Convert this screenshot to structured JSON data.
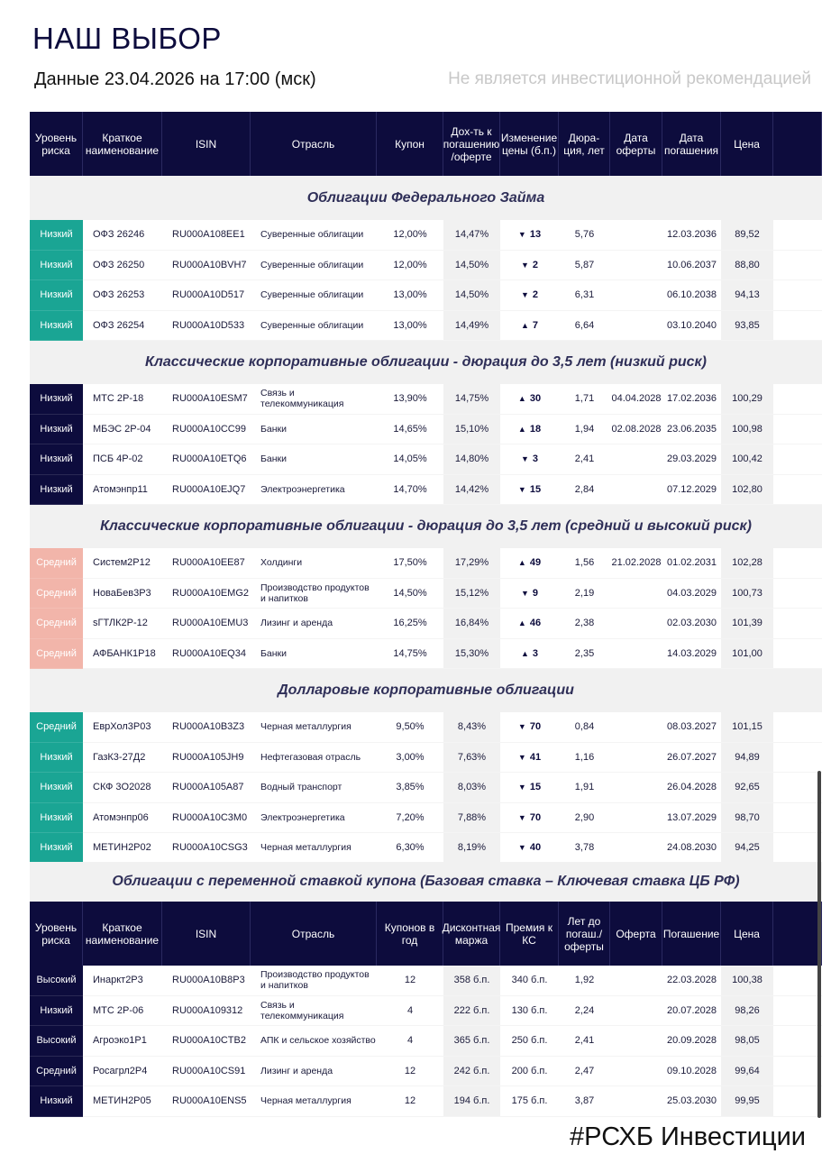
{
  "header": {
    "title": "НАШ ВЫБОР",
    "date": "Данные 23.04.2026 на 17:00 (мск)",
    "disclaimer": "Не является инвестиционной рекомендацией"
  },
  "colors": {
    "navy": "#0d0c3d",
    "teal": "#1aa594",
    "salmon": "#f2b5aa"
  },
  "table1": {
    "columns": [
      "Уровень риска",
      "Краткое наименование",
      "ISIN",
      "Отрасль",
      "Купон",
      "Дох-ть к погашению /оферте",
      "Изменение цены (б.п.)",
      "Дюра-ция, лет",
      "Дата оферты",
      "Дата погашения",
      "Цена"
    ],
    "sections": [
      {
        "title": "Облигации Федерального Займа",
        "risk_color": "teal",
        "rows": [
          {
            "risk": "Низкий",
            "name": "ОФЗ 26246",
            "isin": "RU000A108EE1",
            "sector": "Суверенные облигации",
            "coupon": "12,00%",
            "ytm": "14,47%",
            "chg_dir": "down",
            "chg": "13",
            "dur": "5,76",
            "offer": "",
            "maturity": "12.03.2036",
            "price": "89,52"
          },
          {
            "risk": "Низкий",
            "name": "ОФЗ 26250",
            "isin": "RU000A10BVH7",
            "sector": "Суверенные облигации",
            "coupon": "12,00%",
            "ytm": "14,50%",
            "chg_dir": "down",
            "chg": "2",
            "dur": "5,87",
            "offer": "",
            "maturity": "10.06.2037",
            "price": "88,80"
          },
          {
            "risk": "Низкий",
            "name": "ОФЗ 26253",
            "isin": "RU000A10D517",
            "sector": "Суверенные облигации",
            "coupon": "13,00%",
            "ytm": "14,50%",
            "chg_dir": "down",
            "chg": "2",
            "dur": "6,31",
            "offer": "",
            "maturity": "06.10.2038",
            "price": "94,13"
          },
          {
            "risk": "Низкий",
            "name": "ОФЗ 26254",
            "isin": "RU000A10D533",
            "sector": "Суверенные облигации",
            "coupon": "13,00%",
            "ytm": "14,49%",
            "chg_dir": "up",
            "chg": "7",
            "dur": "6,64",
            "offer": "",
            "maturity": "03.10.2040",
            "price": "93,85"
          }
        ]
      },
      {
        "title": "Классические корпоративные облигации - дюрация до 3,5 лет (низкий риск)",
        "risk_color": "navy",
        "rows": [
          {
            "risk": "Низкий",
            "name": "МТС 2Р-18",
            "isin": "RU000A10ESM7",
            "sector": "Связь и телекоммуникация",
            "coupon": "13,90%",
            "ytm": "14,75%",
            "chg_dir": "up",
            "chg": "30",
            "dur": "1,71",
            "offer": "04.04.2028",
            "maturity": "17.02.2036",
            "price": "100,29"
          },
          {
            "risk": "Низкий",
            "name": "МБЭС 2Р-04",
            "isin": "RU000A10CC99",
            "sector": "Банки",
            "coupon": "14,65%",
            "ytm": "15,10%",
            "chg_dir": "up",
            "chg": "18",
            "dur": "1,94",
            "offer": "02.08.2028",
            "maturity": "23.06.2035",
            "price": "100,98"
          },
          {
            "risk": "Низкий",
            "name": "ПСБ 4Р-02",
            "isin": "RU000A10ETQ6",
            "sector": "Банки",
            "coupon": "14,05%",
            "ytm": "14,80%",
            "chg_dir": "down",
            "chg": "3",
            "dur": "2,41",
            "offer": "",
            "maturity": "29.03.2029",
            "price": "100,42"
          },
          {
            "risk": "Низкий",
            "name": "Атомэнпр11",
            "isin": "RU000A10EJQ7",
            "sector": "Электроэнергетика",
            "coupon": "14,70%",
            "ytm": "14,42%",
            "chg_dir": "down",
            "chg": "15",
            "dur": "2,84",
            "offer": "",
            "maturity": "07.12.2029",
            "price": "102,80"
          }
        ]
      },
      {
        "title": "Классические корпоративные облигации - дюрация до 3,5 лет (средний и высокий риск)",
        "risk_color": "salmon",
        "rows": [
          {
            "risk": "Средний",
            "name": "Систем2Р12",
            "isin": "RU000A10EE87",
            "sector": "Холдинги",
            "coupon": "17,50%",
            "ytm": "17,29%",
            "chg_dir": "up",
            "chg": "49",
            "dur": "1,56",
            "offer": "21.02.2028",
            "maturity": "01.02.2031",
            "price": "102,28"
          },
          {
            "risk": "Средний",
            "name": "НоваБев3Р3",
            "isin": "RU000A10EMG2",
            "sector": "Производство продуктов и напитков",
            "coupon": "14,50%",
            "ytm": "15,12%",
            "chg_dir": "down",
            "chg": "9",
            "dur": "2,19",
            "offer": "",
            "maturity": "04.03.2029",
            "price": "100,73"
          },
          {
            "risk": "Средний",
            "name": "sГТЛК2Р-12",
            "isin": "RU000A10EMU3",
            "sector": "Лизинг и аренда",
            "coupon": "16,25%",
            "ytm": "16,84%",
            "chg_dir": "up",
            "chg": "46",
            "dur": "2,38",
            "offer": "",
            "maturity": "02.03.2030",
            "price": "101,39"
          },
          {
            "risk": "Средний",
            "name": "АФБАНК1Р18",
            "isin": "RU000A10EQ34",
            "sector": "Банки",
            "coupon": "14,75%",
            "ytm": "15,30%",
            "chg_dir": "up",
            "chg": "3",
            "dur": "2,35",
            "offer": "",
            "maturity": "14.03.2029",
            "price": "101,00"
          }
        ]
      },
      {
        "title": "Долларовые корпоративные облигации",
        "risk_color": "teal",
        "rows": [
          {
            "risk": "Средний",
            "name": "ЕврХол3Р03",
            "isin": "RU000A10B3Z3",
            "sector": "Черная металлургия",
            "coupon": "9,50%",
            "ytm": "8,43%",
            "chg_dir": "down",
            "chg": "70",
            "dur": "0,84",
            "offer": "",
            "maturity": "08.03.2027",
            "price": "101,15"
          },
          {
            "risk": "Низкий",
            "name": "ГазК3-27Д2",
            "isin": "RU000A105JH9",
            "sector": "Нефтегазовая отрасль",
            "coupon": "3,00%",
            "ytm": "7,63%",
            "chg_dir": "down",
            "chg": "41",
            "dur": "1,16",
            "offer": "",
            "maturity": "26.07.2027",
            "price": "94,89"
          },
          {
            "risk": "Низкий",
            "name": "СКФ 3О2028",
            "isin": "RU000A105A87",
            "sector": "Водный транспорт",
            "coupon": "3,85%",
            "ytm": "8,03%",
            "chg_dir": "down",
            "chg": "15",
            "dur": "1,91",
            "offer": "",
            "maturity": "26.04.2028",
            "price": "92,65"
          },
          {
            "risk": "Низкий",
            "name": "Атомэнпр06",
            "isin": "RU000A10C3M0",
            "sector": "Электроэнергетика",
            "coupon": "7,20%",
            "ytm": "7,88%",
            "chg_dir": "down",
            "chg": "70",
            "dur": "2,90",
            "offer": "",
            "maturity": "13.07.2029",
            "price": "98,70"
          },
          {
            "risk": "Низкий",
            "name": "МЕТИН2Р02",
            "isin": "RU000A10CSG3",
            "sector": "Черная металлургия",
            "coupon": "6,30%",
            "ytm": "8,19%",
            "chg_dir": "down",
            "chg": "40",
            "dur": "3,78",
            "offer": "",
            "maturity": "24.08.2030",
            "price": "94,25"
          }
        ]
      }
    ]
  },
  "table2": {
    "title": "Облигации с переменной ставкой купона (Базовая ставка – Ключевая ставка ЦБ РФ)",
    "columns": [
      "Уровень риска",
      "Краткое наименование",
      "ISIN",
      "Отрасль",
      "Купонов в год",
      "Дисконтная маржа",
      "Премия к КС",
      "Лет до погаш./ оферты",
      "Оферта",
      "Погашение",
      "Цена"
    ],
    "rows": [
      {
        "risk": "Высокий",
        "name": "Инаркт2Р3",
        "isin": "RU000A10B8P3",
        "sector": "Производство продуктов и напитков",
        "coupons": "12",
        "margin": "358 б.п.",
        "premium": "340 б.п.",
        "years": "1,92",
        "offer": "",
        "maturity": "22.03.2028",
        "price": "100,38"
      },
      {
        "risk": "Низкий",
        "name": "МТС 2Р-06",
        "isin": "RU000A109312",
        "sector": "Связь и телекоммуникация",
        "coupons": "4",
        "margin": "222 б.п.",
        "premium": "130 б.п.",
        "years": "2,24",
        "offer": "",
        "maturity": "20.07.2028",
        "price": "98,26"
      },
      {
        "risk": "Высокий",
        "name": "Агроэко1Р1",
        "isin": "RU000A10CTB2",
        "sector": "АПК и сельское хозяйство",
        "coupons": "4",
        "margin": "365 б.п.",
        "premium": "250 б.п.",
        "years": "2,41",
        "offer": "",
        "maturity": "20.09.2028",
        "price": "98,05"
      },
      {
        "risk": "Средний",
        "name": "Росагрл2Р4",
        "isin": "RU000A10CS91",
        "sector": "Лизинг и аренда",
        "coupons": "12",
        "margin": "242 б.п.",
        "premium": "200 б.п.",
        "years": "2,47",
        "offer": "",
        "maturity": "09.10.2028",
        "price": "99,64"
      },
      {
        "risk": "Низкий",
        "name": "МЕТИН2Р05",
        "isin": "RU000A10ENS5",
        "sector": "Черная металлургия",
        "coupons": "12",
        "margin": "194 б.п.",
        "premium": "175 б.п.",
        "years": "3,87",
        "offer": "",
        "maturity": "25.03.2030",
        "price": "99,95"
      }
    ]
  },
  "footer": {
    "hashtag": "#РСХБ Инвестиции"
  }
}
